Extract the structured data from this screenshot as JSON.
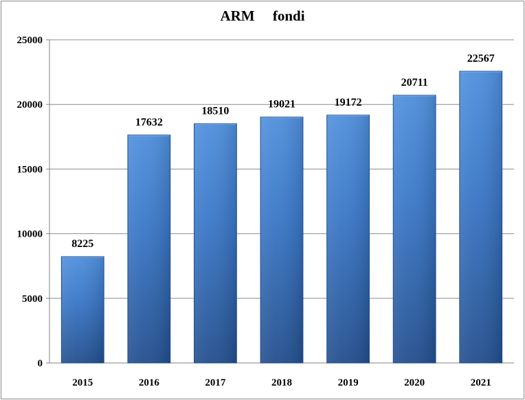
{
  "chart_data": {
    "type": "bar",
    "title": "ARM     fondi",
    "categories": [
      "2015",
      "2016",
      "2017",
      "2018",
      "2019",
      "2020",
      "2021"
    ],
    "values": [
      8225,
      17632,
      18510,
      19021,
      19172,
      20711,
      22567
    ],
    "data_labels": [
      "8225",
      "17632",
      "18510",
      "19021",
      "19172",
      "20711",
      "22567"
    ],
    "y_ticks": [
      "0",
      "5000",
      "10000",
      "15000",
      "20000",
      "25000"
    ],
    "ylim": [
      0,
      25000
    ],
    "grid": true,
    "legend": "none",
    "colors": {
      "bar_top": "#4f8fdc",
      "bar_mid": "#3a78c8",
      "bar_bottom": "#234f8e",
      "bar_edge": "#1f4d8a",
      "grid": "#8c8c8c",
      "axis": "#808080"
    }
  }
}
